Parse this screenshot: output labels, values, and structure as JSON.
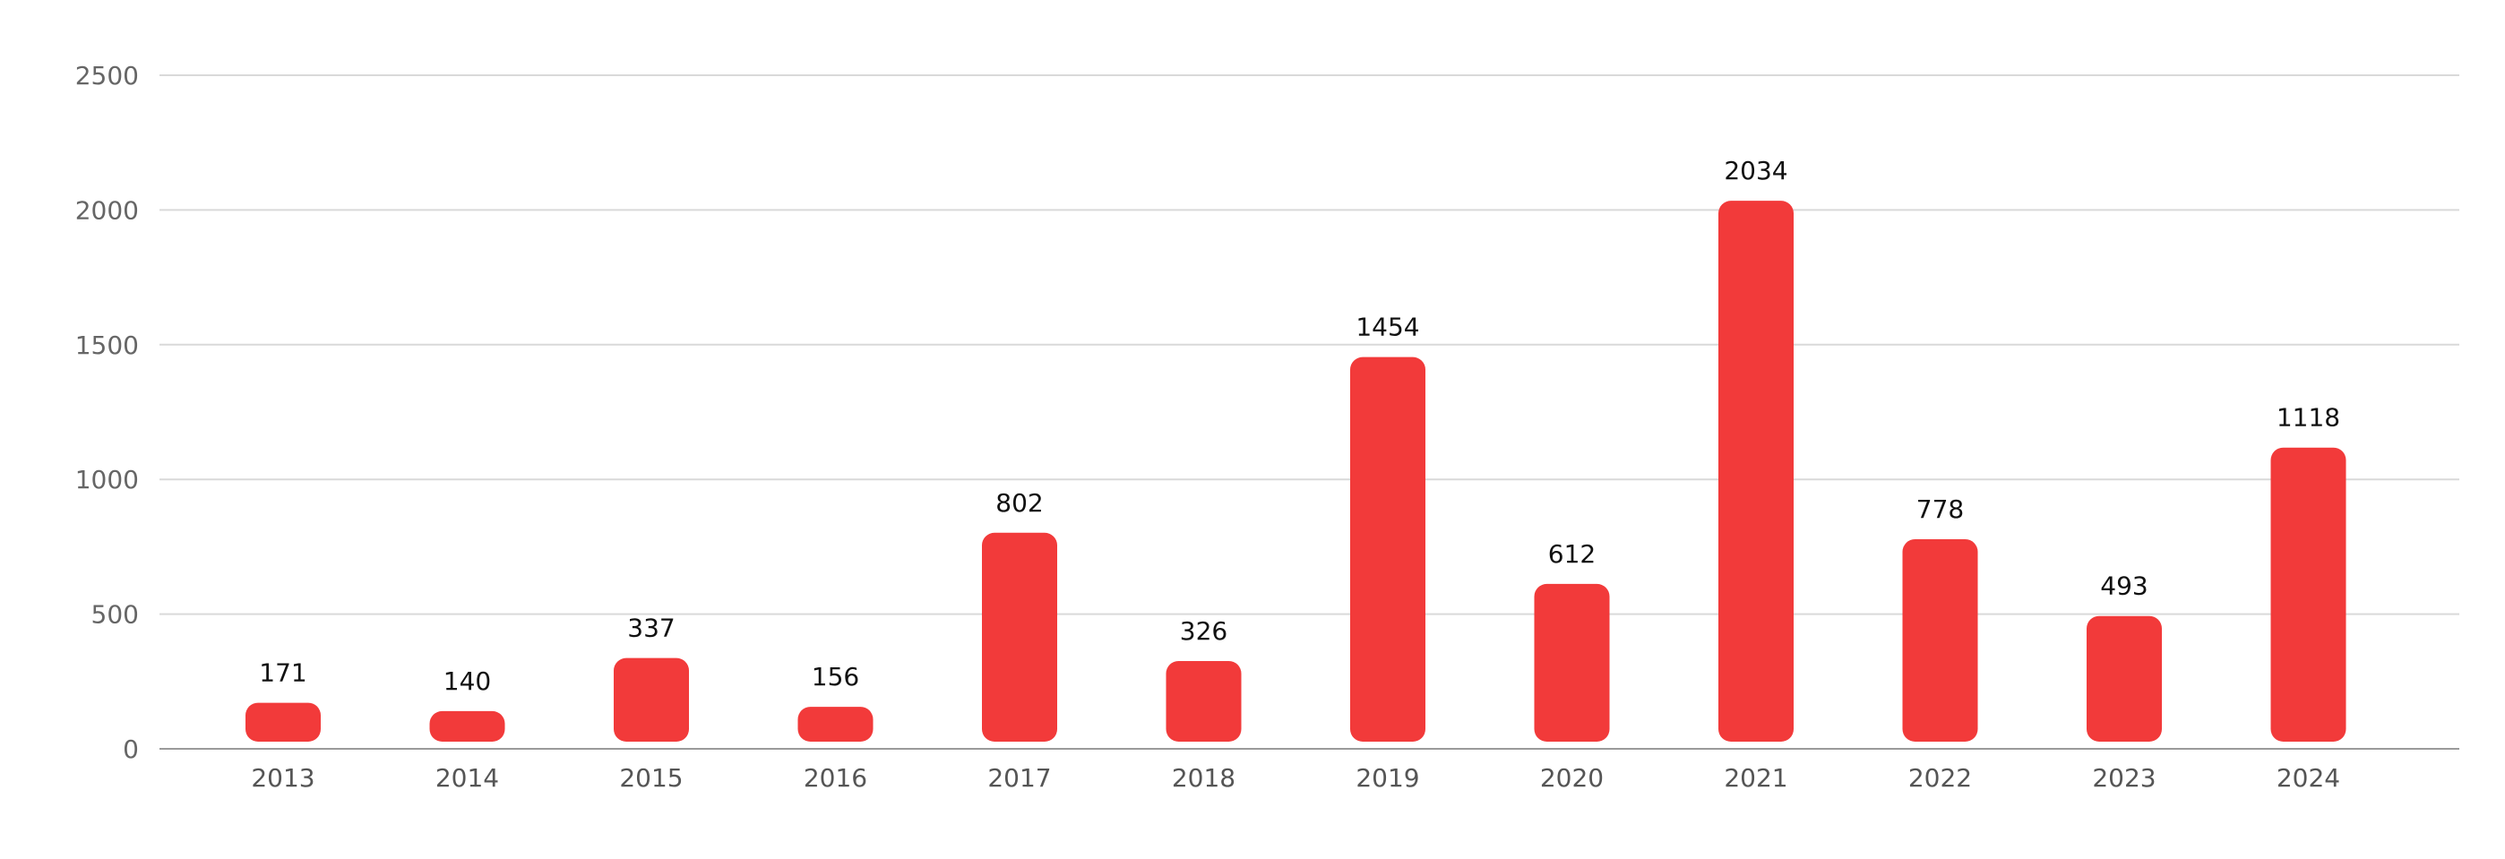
{
  "chart_data": {
    "type": "bar",
    "categories": [
      "2013",
      "2014",
      "2015",
      "2016",
      "2017",
      "2018",
      "2019",
      "2020",
      "2021",
      "2022",
      "2023",
      "2024"
    ],
    "values": [
      171,
      140,
      337,
      156,
      802,
      326,
      1454,
      612,
      2034,
      778,
      493,
      1118
    ],
    "title": "",
    "xlabel": "",
    "ylabel": "",
    "ylim": [
      0,
      2500
    ],
    "yticks": [
      0,
      500,
      1000,
      1500,
      2000,
      2500
    ],
    "grid": true,
    "legend": "none",
    "bar_color": "#f23a3a"
  }
}
